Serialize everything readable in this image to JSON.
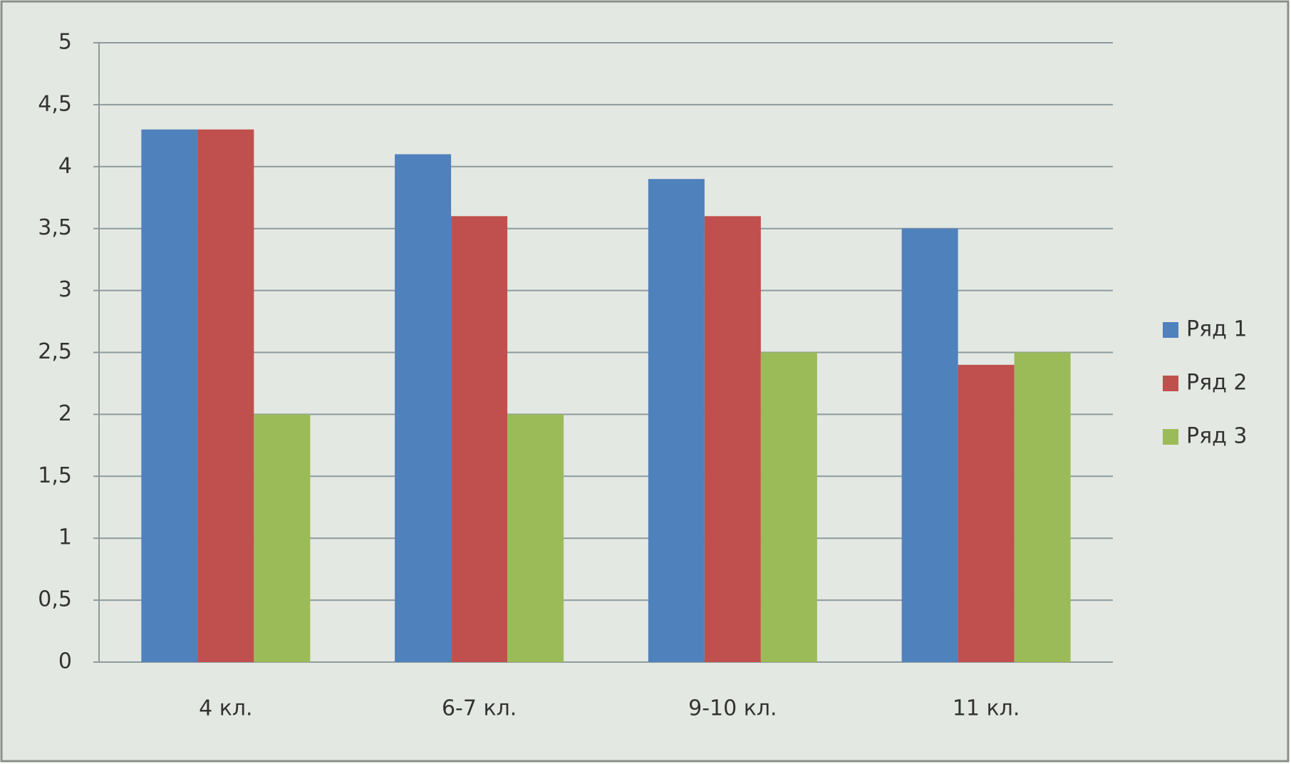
{
  "chart_data": {
    "type": "bar",
    "categories": [
      "4 кл.",
      "6-7 кл.",
      "9-10 кл.",
      "11 кл."
    ],
    "series": [
      {
        "name": "Ряд 1",
        "color": "#4f81bd",
        "values": [
          4.3,
          4.1,
          3.9,
          3.5
        ]
      },
      {
        "name": "Ряд 2",
        "color": "#c0504d",
        "values": [
          4.3,
          3.6,
          3.6,
          2.4
        ]
      },
      {
        "name": "Ряд 3",
        "color": "#9bbb59",
        "values": [
          2,
          2,
          2.5,
          2.5
        ]
      }
    ],
    "ylim": [
      0,
      5
    ],
    "yticks": [
      0,
      {
        "value": 0.5,
        "label": "0,5"
      },
      1,
      {
        "value": 1.5,
        "label": "1,5"
      },
      2,
      {
        "value": 2.5,
        "label": "2,5"
      },
      3,
      {
        "value": 3.5,
        "label": "3,5"
      },
      4,
      {
        "value": 4.5,
        "label": "4,5"
      },
      5
    ],
    "grid": true,
    "legend": "right"
  }
}
